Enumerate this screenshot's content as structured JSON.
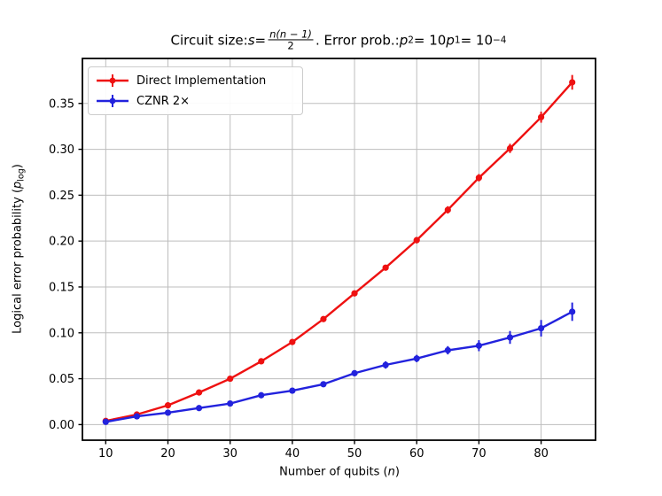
{
  "figure_title": {
    "t1": "Circuit size: ",
    "s_var": "s",
    "t2": " = ",
    "frac_num": "n(n − 1)",
    "frac_den": "2",
    "t3": ".  Error prob.: ",
    "p2_var": "p",
    "p2_sub": "2",
    "t4": " = 10",
    "p1_var": "p",
    "p1_sub": "1",
    "t5": " = 10",
    "exp": "−4"
  },
  "axis_labels": {
    "x_prefix": "Number of qubits (",
    "x_var": "n",
    "x_suffix": ")",
    "y_prefix": "Logical error probability (",
    "y_var": "p",
    "y_sub": "log",
    "y_suffix": ")"
  },
  "legend": {
    "items": [
      {
        "label": "Direct Implementation",
        "color": "#ee1111"
      },
      {
        "label": "CZNR 2×",
        "color": "#2222dd"
      }
    ]
  },
  "chart_data": {
    "type": "line",
    "title": "Circuit size: s = n(n−1)/2.  Error prob.: p2 = 10 p1 = 10^−4",
    "xlabel": "Number of qubits (n)",
    "ylabel": "Logical error probability (p_log)",
    "x": [
      10,
      15,
      20,
      25,
      30,
      35,
      40,
      45,
      50,
      55,
      60,
      65,
      70,
      75,
      80,
      85
    ],
    "series": [
      {
        "name": "Direct Implementation",
        "color": "#ee1111",
        "marker": "circle",
        "values": [
          0.004,
          0.011,
          0.021,
          0.035,
          0.05,
          0.069,
          0.09,
          0.115,
          0.143,
          0.171,
          0.201,
          0.234,
          0.269,
          0.301,
          0.335,
          0.373
        ],
        "errors": [
          0.001,
          0.001,
          0.001,
          0.0015,
          0.002,
          0.002,
          0.002,
          0.0025,
          0.003,
          0.003,
          0.0035,
          0.004,
          0.004,
          0.005,
          0.006,
          0.008
        ]
      },
      {
        "name": "CZNR 2×",
        "color": "#2222dd",
        "marker": "circle",
        "values": [
          0.003,
          0.009,
          0.013,
          0.018,
          0.023,
          0.032,
          0.037,
          0.044,
          0.056,
          0.065,
          0.072,
          0.081,
          0.086,
          0.095,
          0.105,
          0.123
        ],
        "errors": [
          0.001,
          0.001,
          0.0012,
          0.0015,
          0.002,
          0.002,
          0.0025,
          0.003,
          0.003,
          0.004,
          0.004,
          0.0045,
          0.006,
          0.007,
          0.009,
          0.01
        ]
      }
    ],
    "xlim": [
      6.25,
      88.75
    ],
    "ylim": [
      -0.017,
      0.399
    ],
    "xticks": [
      10,
      20,
      30,
      40,
      50,
      60,
      70,
      80
    ],
    "yticks": [
      0.0,
      0.05,
      0.1,
      0.15,
      0.2,
      0.25,
      0.3,
      0.35
    ],
    "grid": true,
    "legend_position": "upper left",
    "grid_color": "#bdbdbd",
    "spine_color": "#000000"
  }
}
